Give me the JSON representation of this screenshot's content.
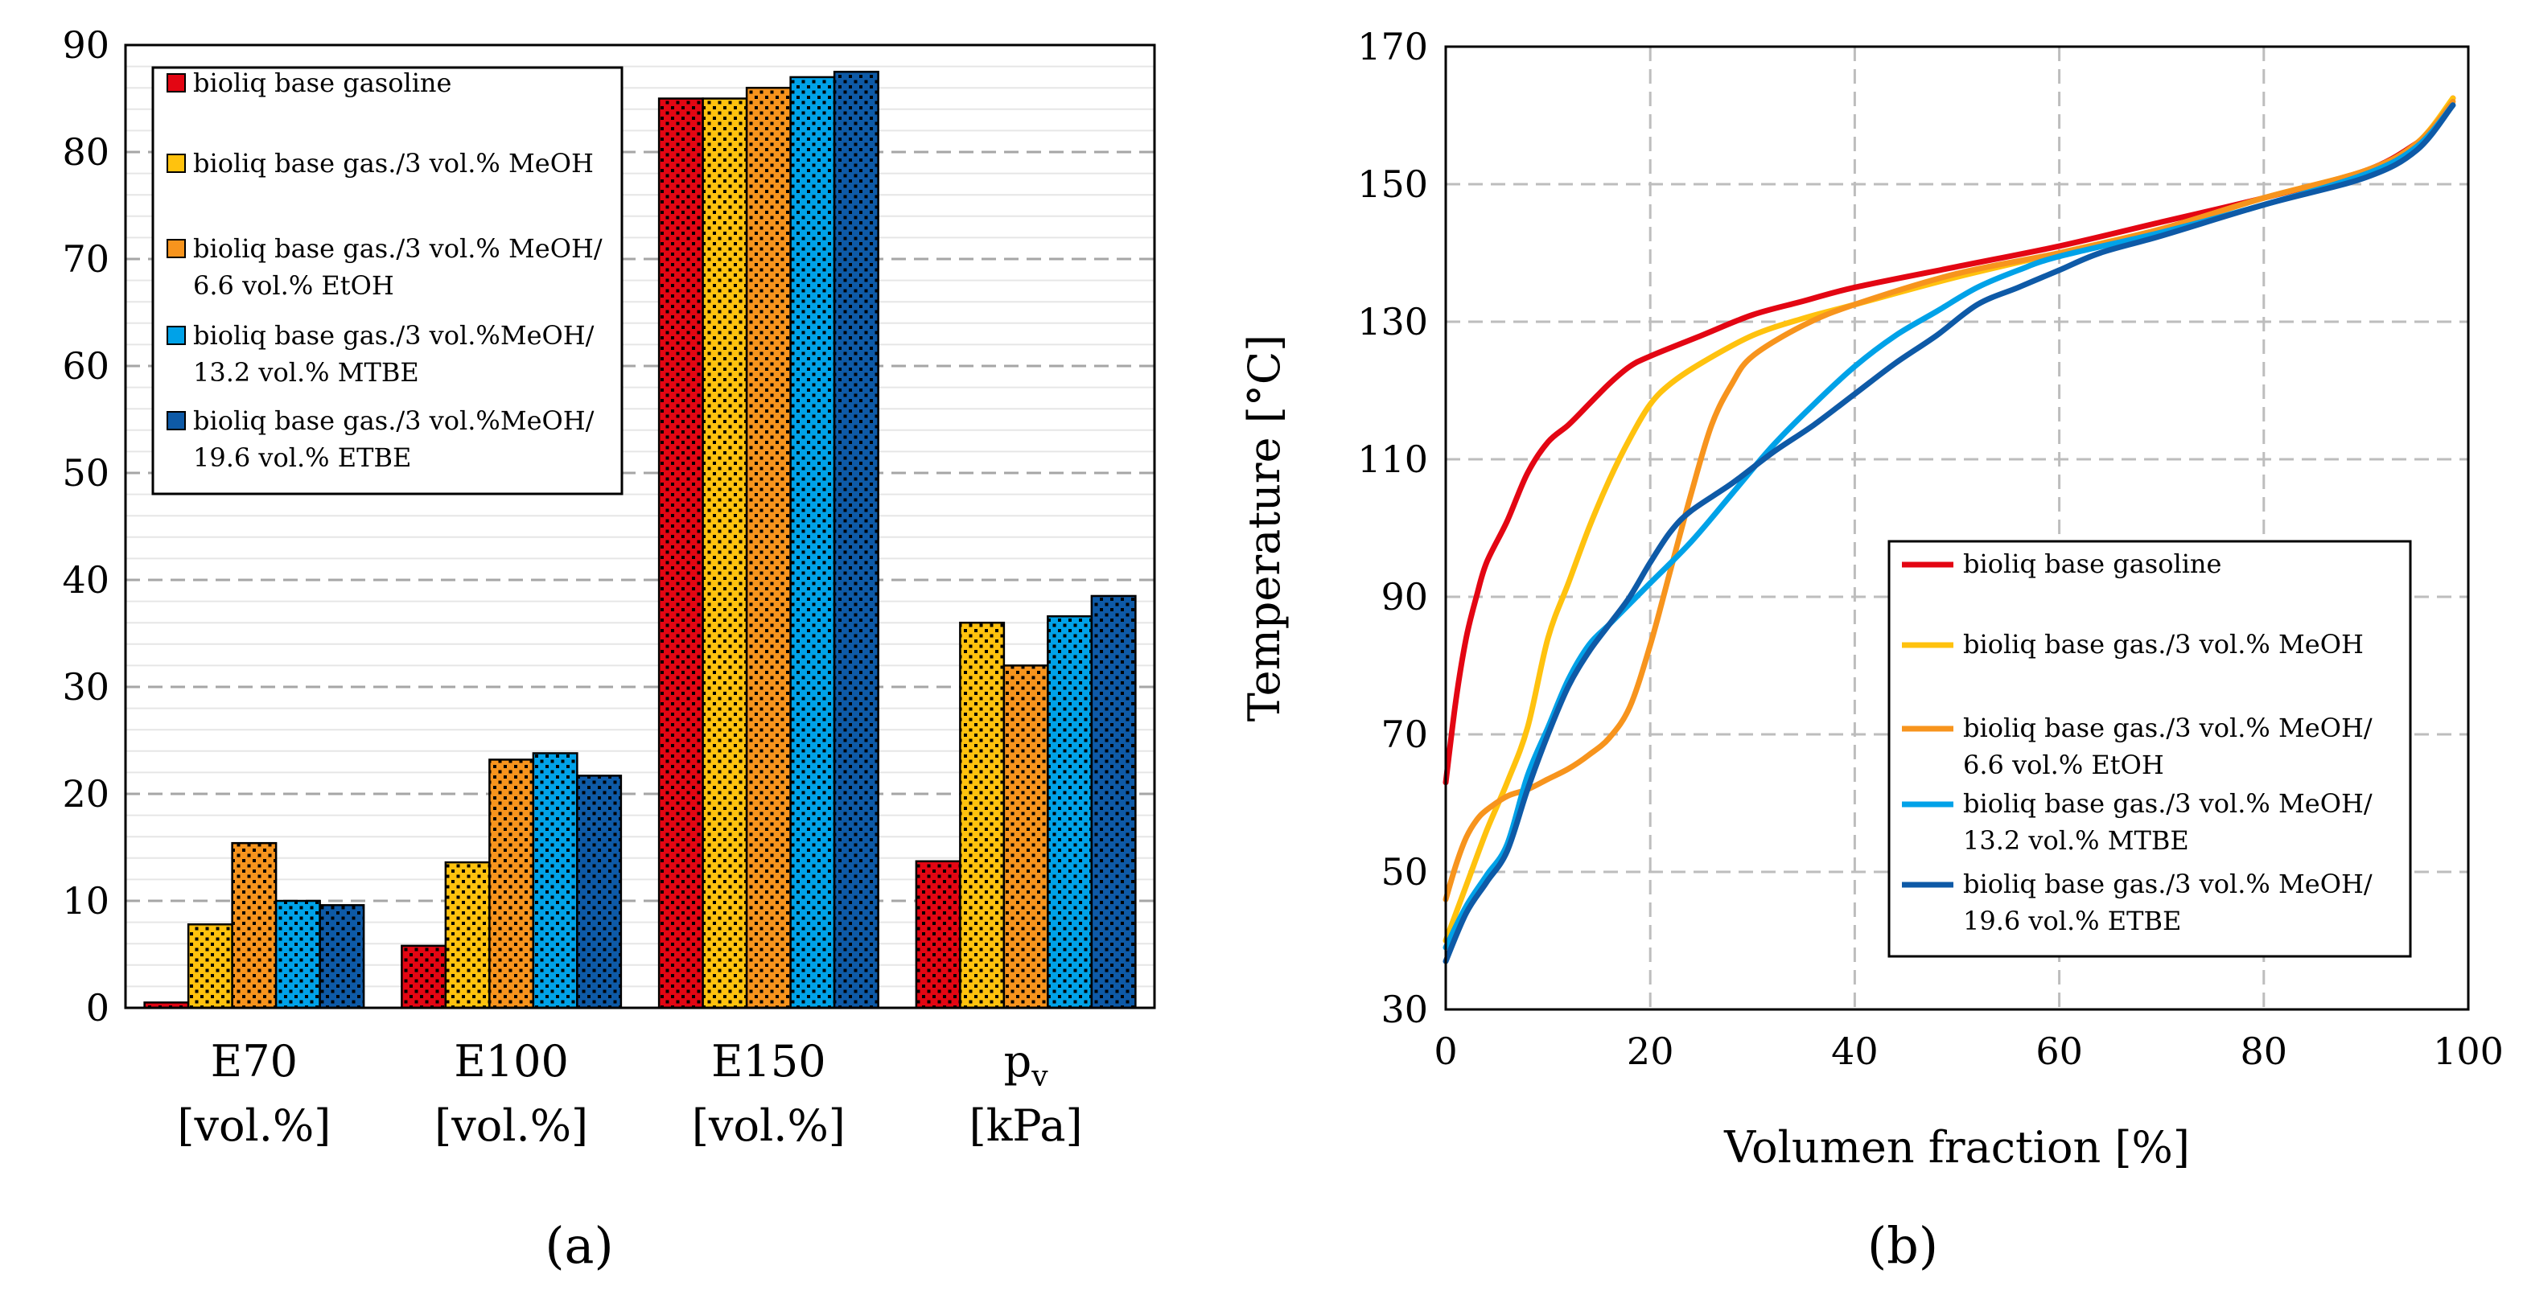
{
  "panels": {
    "a": "(a)",
    "b": "(b)"
  },
  "chart_data": [
    {
      "panel": "a",
      "type": "bar",
      "title": "",
      "ylim": [
        0,
        90
      ],
      "yticks": [
        0,
        10,
        20,
        30,
        40,
        50,
        60,
        70,
        80,
        90
      ],
      "categories": [
        {
          "line1": "E70",
          "line2": "[vol.%]"
        },
        {
          "line1": "E100",
          "line2": "[vol.%]"
        },
        {
          "line1": "E150",
          "line2": "[vol.%]"
        },
        {
          "line1": "p",
          "sub": "v",
          "line2": "[kPa]"
        }
      ],
      "series": [
        {
          "name": [
            "bioliq base gasoline"
          ],
          "color": "#e30613",
          "values": [
            0.5,
            5.8,
            85,
            13.7
          ]
        },
        {
          "name": [
            "bioliq base gas./3 vol.% MeOH"
          ],
          "color": "#ffc20e",
          "values": [
            7.8,
            13.6,
            85,
            36
          ]
        },
        {
          "name": [
            "bioliq base gas./3 vol.% MeOH/",
            "6.6 vol.% EtOH"
          ],
          "color": "#f7941d",
          "values": [
            15.4,
            23.2,
            86,
            32
          ]
        },
        {
          "name": [
            "bioliq base gas./3 vol.%MeOH/",
            "13.2 vol.% MTBE"
          ],
          "color": "#00a2e8",
          "values": [
            10,
            23.8,
            87,
            36.6
          ]
        },
        {
          "name": [
            "bioliq base gas./3 vol.%MeOH/",
            "19.6 vol.% ETBE"
          ],
          "color": "#0e5aa7",
          "values": [
            9.6,
            21.7,
            87.5,
            38.5
          ]
        }
      ]
    },
    {
      "panel": "b",
      "type": "line",
      "title": "",
      "xlabel": "Volumen fraction [%]",
      "ylabel": "Temperature [°C]",
      "xlim": [
        0,
        100
      ],
      "ylim": [
        30,
        170
      ],
      "xticks": [
        0,
        20,
        40,
        60,
        80,
        100
      ],
      "yticks": [
        30,
        50,
        70,
        90,
        110,
        130,
        150,
        170
      ],
      "series": [
        {
          "name": [
            "bioliq base gasoline"
          ],
          "color": "#e30613",
          "x": [
            0,
            1,
            2,
            3,
            4,
            6,
            8,
            10,
            12,
            14,
            16,
            18,
            20,
            25,
            30,
            35,
            40,
            50,
            60,
            70,
            80,
            90,
            95,
            97,
            98.5
          ],
          "y": [
            63,
            75,
            84,
            90,
            95,
            101,
            108,
            112.5,
            115,
            118,
            121,
            123.5,
            125,
            128,
            131,
            133,
            135,
            138,
            141,
            144.5,
            148,
            152,
            156,
            158.5,
            162.5
          ]
        },
        {
          "name": [
            "bioliq base gas./3 vol.% MeOH"
          ],
          "color": "#ffc20e",
          "x": [
            0,
            2,
            4,
            6,
            8,
            10,
            12,
            14,
            16,
            18,
            20,
            22,
            25,
            30,
            35,
            40,
            50,
            60,
            70,
            80,
            90,
            95,
            98.5
          ],
          "y": [
            40,
            48,
            56,
            63,
            71,
            84,
            92,
            100,
            107,
            113,
            118,
            121,
            124,
            128,
            130.5,
            132.5,
            136.5,
            140,
            143.5,
            148,
            152,
            156,
            162.5
          ]
        },
        {
          "name": [
            "bioliq base gas./3 vol.% MeOH/",
            "6.6 vol.% EtOH"
          ],
          "color": "#f7941d",
          "x": [
            0,
            1,
            2,
            3,
            4,
            6,
            8,
            10,
            12,
            14,
            16,
            18,
            20,
            22,
            24,
            26,
            28,
            30,
            35,
            40,
            50,
            60,
            70,
            80,
            90,
            95,
            98.5
          ],
          "y": [
            46,
            51,
            55,
            57.5,
            59,
            61,
            62,
            63.5,
            65,
            67,
            69.5,
            74,
            83,
            94,
            105,
            115,
            121,
            125,
            129.5,
            132.5,
            137,
            140,
            143.5,
            148,
            152,
            156,
            162
          ]
        },
        {
          "name": [
            "bioliq base gas./3 vol.% MeOH/",
            "13.2 vol.% MTBE"
          ],
          "color": "#00a2e8",
          "x": [
            0,
            2,
            4,
            6,
            8,
            10,
            12,
            14,
            16,
            18,
            20,
            24,
            28,
            32,
            36,
            40,
            44,
            48,
            52,
            56,
            60,
            70,
            80,
            90,
            95,
            98.5
          ],
          "y": [
            39,
            45,
            49.5,
            54,
            64,
            71,
            78,
            83,
            86,
            89,
            92,
            98,
            105,
            112,
            118,
            123.5,
            128,
            131.5,
            135,
            137.5,
            139.5,
            143,
            147,
            151.5,
            155.5,
            161.5
          ]
        },
        {
          "name": [
            "bioliq base gas./3 vol.% MeOH/",
            "19.6 vol.% ETBE"
          ],
          "color": "#0e5aa7",
          "x": [
            0,
            2,
            4,
            6,
            8,
            10,
            12,
            14,
            16,
            18,
            20,
            22,
            24,
            28,
            32,
            36,
            40,
            44,
            48,
            52,
            56,
            60,
            64,
            70,
            80,
            90,
            95,
            98.5
          ],
          "y": [
            37,
            44,
            48.5,
            53,
            62,
            70,
            77,
            82,
            86,
            90,
            95,
            99.5,
            102.5,
            106.5,
            111,
            115,
            119.5,
            124,
            128,
            132.5,
            135,
            137.5,
            140,
            142.5,
            147,
            151,
            155,
            161.5
          ]
        }
      ]
    }
  ]
}
